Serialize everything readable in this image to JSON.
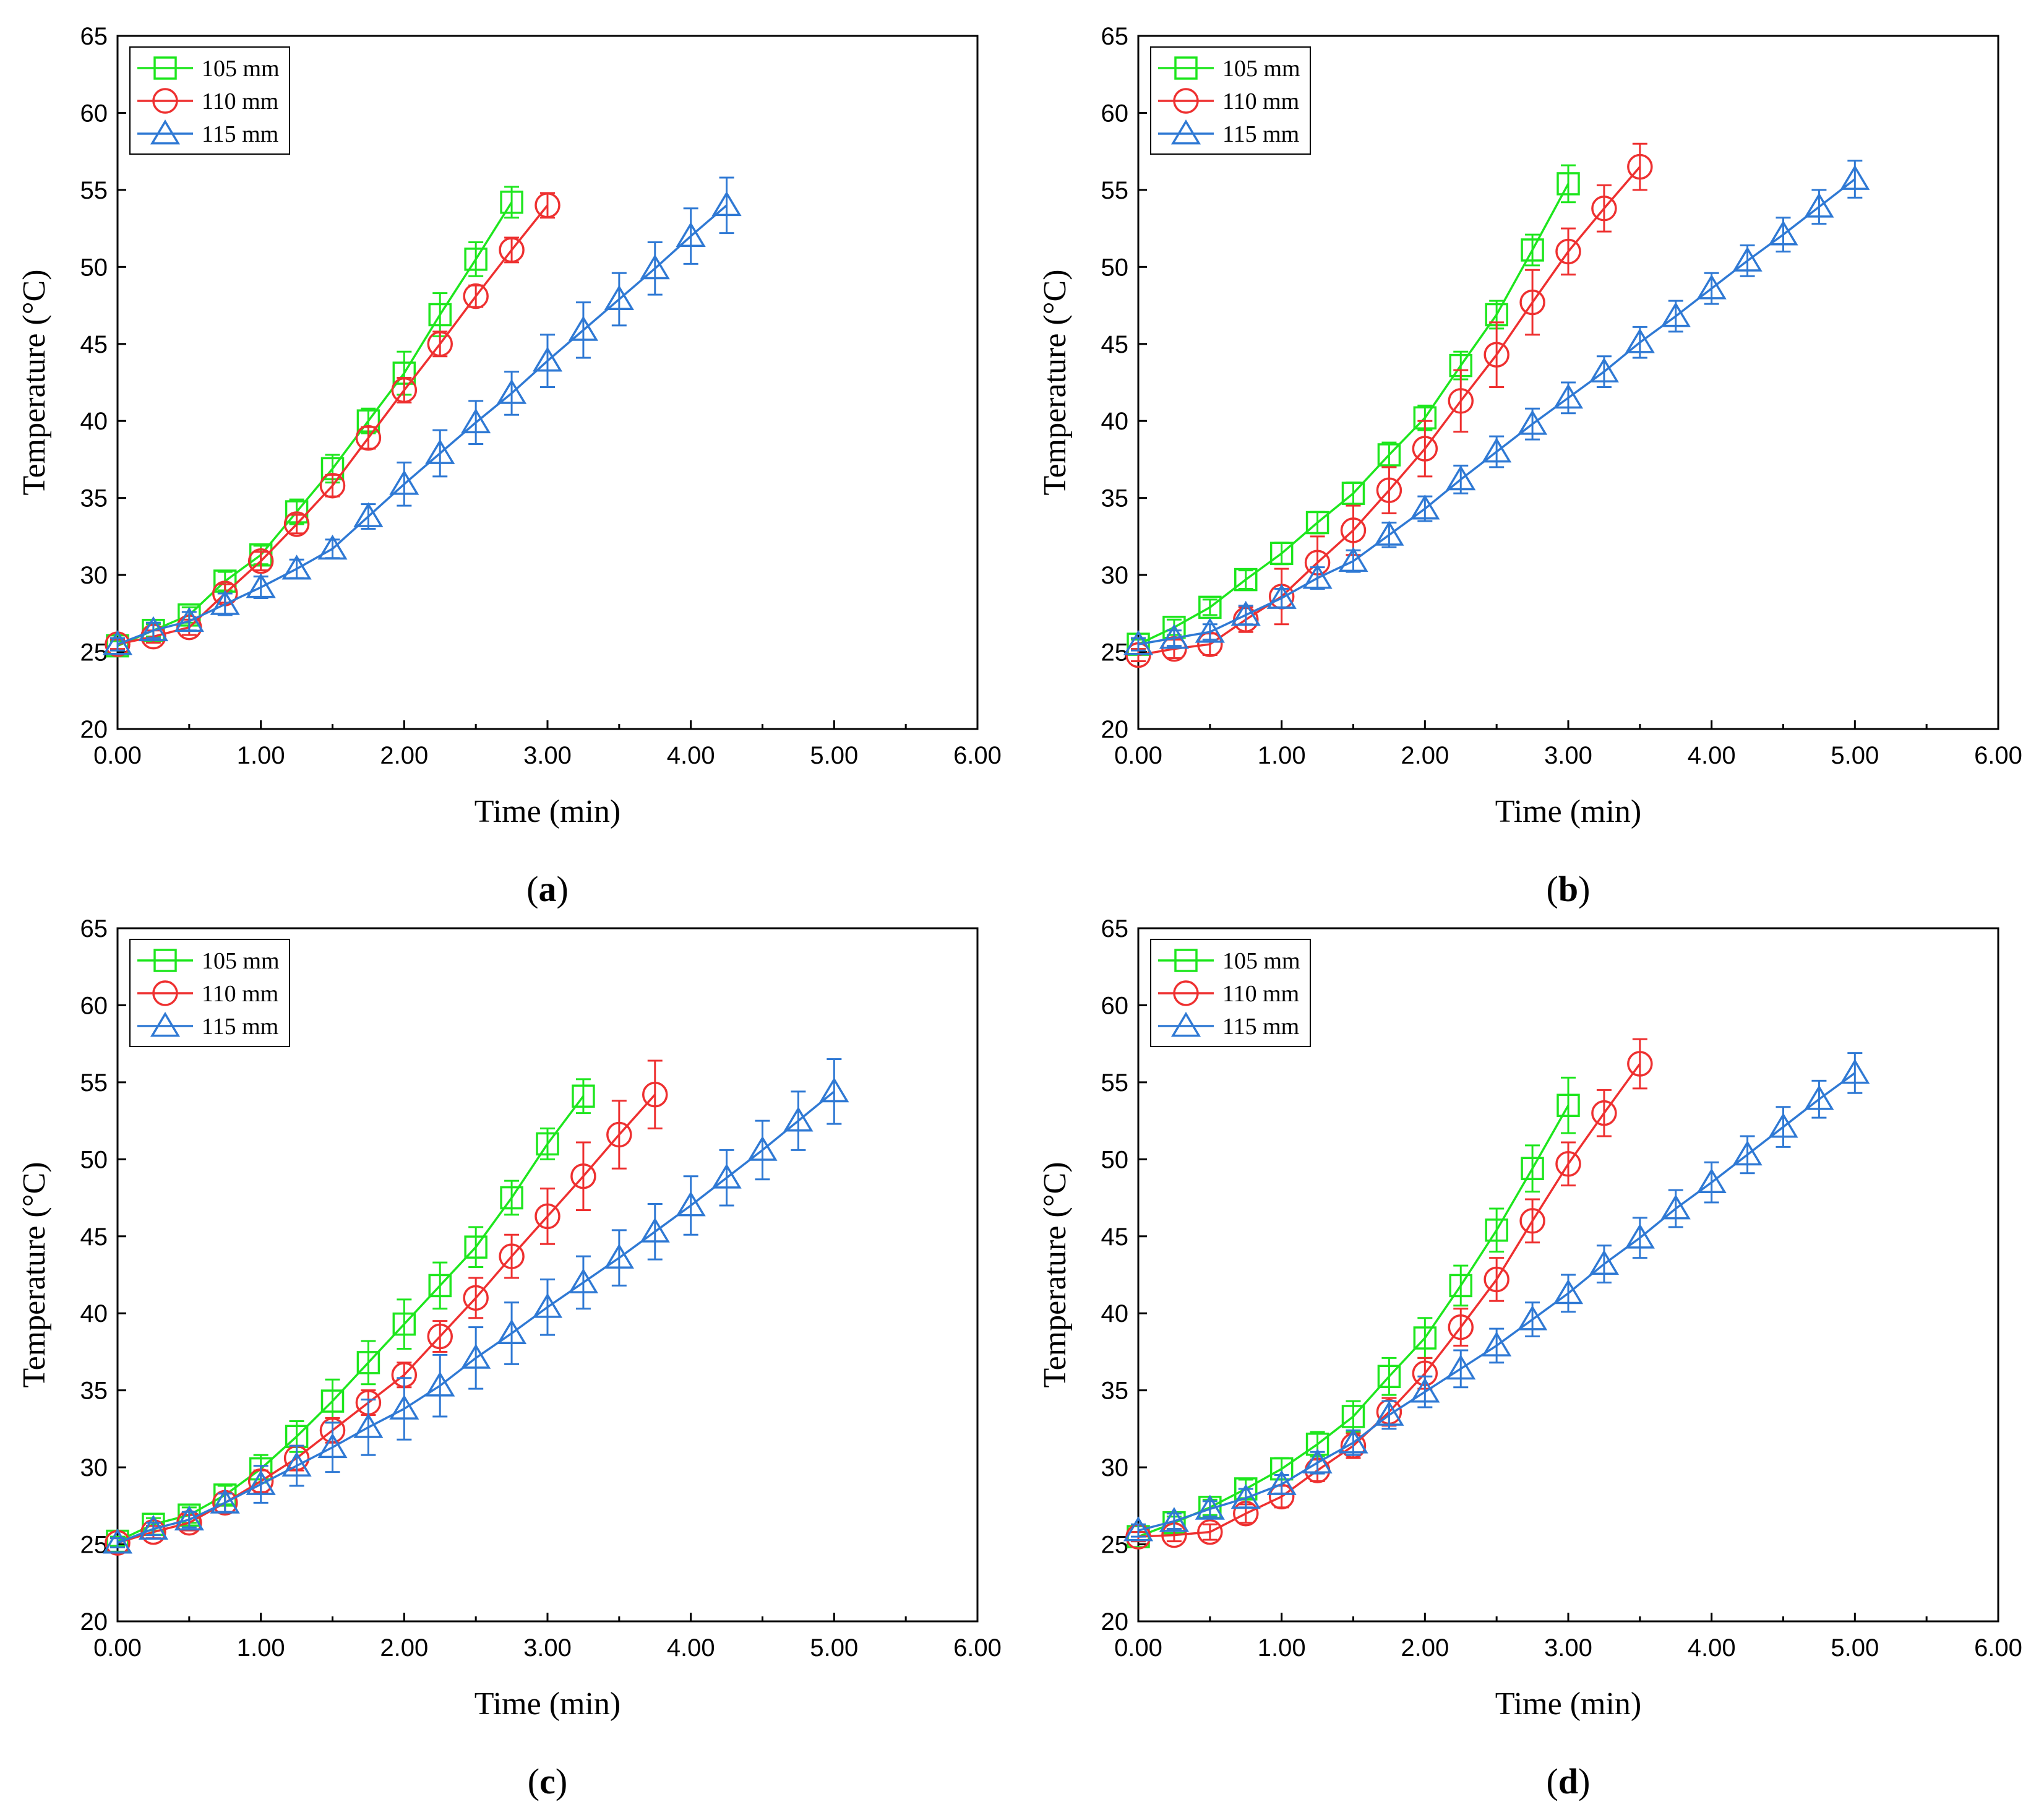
{
  "figure": {
    "colors": {
      "105 mm": "#1ee61e",
      "110 mm": "#ee3030",
      "115 mm": "#2f79d4"
    },
    "markers": {
      "105 mm": "square",
      "110 mm": "circle",
      "115 mm": "triangle"
    }
  },
  "chart_data": [
    {
      "type": "line",
      "panel": "a",
      "xlabel": "Time (min)",
      "ylabel": "Temperature (°C)",
      "xlim": [
        0,
        6
      ],
      "ylim": [
        20,
        65
      ],
      "xticks": [
        "0.00",
        "1.00",
        "2.00",
        "3.00",
        "4.00",
        "5.00",
        "6.00"
      ],
      "yticks": [
        "20",
        "25",
        "30",
        "35",
        "40",
        "45",
        "50",
        "55",
        "60",
        "65"
      ],
      "legend": [
        "105 mm",
        "110 mm",
        "115 mm"
      ],
      "series": [
        {
          "name": "105 mm",
          "x": [
            0,
            0.25,
            0.5,
            0.75,
            1.0,
            1.25,
            1.5,
            1.75,
            2.0,
            2.25,
            2.5,
            2.75
          ],
          "y": [
            25.4,
            26.4,
            27.4,
            29.6,
            31.3,
            34.1,
            36.9,
            40.0,
            43.1,
            46.9,
            50.5,
            54.2
          ],
          "err": [
            0.3,
            0.4,
            0.5,
            0.6,
            0.6,
            0.8,
            0.9,
            0.8,
            1.4,
            1.4,
            1.1,
            1.0
          ]
        },
        {
          "name": "110 mm",
          "x": [
            0,
            0.25,
            0.5,
            0.75,
            1.0,
            1.25,
            1.5,
            1.75,
            2.0,
            2.25,
            2.5,
            2.75,
            3.0
          ],
          "y": [
            25.5,
            26.0,
            26.6,
            28.8,
            30.9,
            33.3,
            35.8,
            38.9,
            42.0,
            45.0,
            48.1,
            51.1,
            54.0
          ],
          "err": [
            0.3,
            0.4,
            0.5,
            0.6,
            0.6,
            0.6,
            0.7,
            0.7,
            0.8,
            0.8,
            0.7,
            0.8,
            0.8
          ]
        },
        {
          "name": "115 mm",
          "x": [
            0,
            0.25,
            0.5,
            0.75,
            1.0,
            1.25,
            1.5,
            1.75,
            2.0,
            2.25,
            2.5,
            2.75,
            3.0,
            3.25,
            3.5,
            3.75,
            4.0,
            4.25
          ],
          "y": [
            25.5,
            26.4,
            27.0,
            28.1,
            29.2,
            30.4,
            31.7,
            33.8,
            35.9,
            37.9,
            39.9,
            41.8,
            43.9,
            45.9,
            47.9,
            49.9,
            52.0,
            54.0
          ],
          "err": [
            0.4,
            0.5,
            0.6,
            0.7,
            0.7,
            0.6,
            0.6,
            0.8,
            1.4,
            1.5,
            1.4,
            1.4,
            1.7,
            1.8,
            1.7,
            1.7,
            1.8,
            1.8
          ]
        }
      ]
    },
    {
      "type": "line",
      "panel": "b",
      "xlabel": "Time (min)",
      "ylabel": "Temperature (°C)",
      "xlim": [
        0,
        6
      ],
      "ylim": [
        20,
        65
      ],
      "xticks": [
        "0.00",
        "1.00",
        "2.00",
        "3.00",
        "4.00",
        "5.00",
        "6.00"
      ],
      "yticks": [
        "20",
        "25",
        "30",
        "35",
        "40",
        "45",
        "50",
        "55",
        "60",
        "65"
      ],
      "legend": [
        "105 mm",
        "110 mm",
        "115 mm"
      ],
      "series": [
        {
          "name": "105 mm",
          "x": [
            0,
            0.25,
            0.5,
            0.75,
            1.0,
            1.25,
            1.5,
            1.75,
            2.0,
            2.25,
            2.5,
            2.75,
            3.0
          ],
          "y": [
            25.5,
            26.6,
            27.9,
            29.7,
            31.4,
            33.4,
            35.3,
            37.8,
            40.2,
            43.6,
            46.9,
            51.1,
            55.4
          ],
          "err": [
            0.3,
            0.5,
            0.5,
            0.6,
            0.7,
            0.7,
            0.7,
            0.8,
            0.8,
            0.9,
            0.9,
            1.0,
            1.2
          ]
        },
        {
          "name": "110 mm",
          "x": [
            0,
            0.25,
            0.5,
            0.75,
            1.0,
            1.25,
            1.5,
            1.75,
            2.0,
            2.25,
            2.5,
            2.75,
            3.0,
            3.25,
            3.5
          ],
          "y": [
            24.8,
            25.2,
            25.5,
            27.1,
            28.6,
            30.8,
            32.9,
            35.5,
            38.2,
            41.3,
            44.3,
            47.7,
            51.0,
            53.8,
            56.5
          ],
          "err": [
            0.4,
            0.6,
            0.7,
            0.8,
            1.8,
            1.7,
            1.6,
            1.5,
            1.8,
            2.0,
            2.1,
            2.1,
            1.5,
            1.5,
            1.5
          ]
        },
        {
          "name": "115 mm",
          "x": [
            0,
            0.25,
            0.5,
            0.75,
            1.0,
            1.25,
            1.5,
            1.75,
            2.0,
            2.25,
            2.5,
            2.75,
            3.0,
            3.25,
            3.5,
            3.75,
            4.0,
            4.25,
            4.5,
            4.75,
            5.0
          ],
          "y": [
            25.5,
            25.9,
            26.3,
            27.4,
            28.5,
            29.8,
            30.9,
            32.6,
            34.3,
            36.2,
            38.0,
            39.8,
            41.5,
            43.2,
            45.1,
            46.8,
            48.6,
            50.4,
            52.1,
            53.9,
            55.7
          ],
          "err": [
            0.4,
            0.5,
            0.5,
            0.6,
            0.6,
            0.7,
            0.7,
            0.8,
            0.8,
            0.9,
            1.0,
            1.0,
            1.0,
            1.0,
            1.0,
            1.0,
            1.0,
            1.0,
            1.1,
            1.1,
            1.2
          ]
        }
      ]
    },
    {
      "type": "line",
      "panel": "c",
      "xlabel": "Time (min)",
      "ylabel": "Temperature (°C)",
      "xlim": [
        0,
        6
      ],
      "ylim": [
        20,
        65
      ],
      "xticks": [
        "0.00",
        "1.00",
        "2.00",
        "3.00",
        "4.00",
        "5.00",
        "6.00"
      ],
      "yticks": [
        "20",
        "25",
        "30",
        "35",
        "40",
        "45",
        "50",
        "55",
        "60",
        "65"
      ],
      "legend": [
        "105 mm",
        "110 mm",
        "115 mm"
      ],
      "series": [
        {
          "name": "105 mm",
          "x": [
            0,
            0.25,
            0.5,
            0.75,
            1.0,
            1.25,
            1.5,
            1.75,
            2.0,
            2.25,
            2.5,
            2.75,
            3.0,
            3.25
          ],
          "y": [
            25.2,
            26.3,
            26.9,
            28.2,
            29.9,
            32.0,
            34.3,
            36.8,
            39.3,
            41.8,
            44.3,
            47.5,
            51.0,
            54.1
          ],
          "err": [
            0.3,
            0.4,
            0.5,
            0.6,
            0.9,
            1.0,
            1.4,
            1.4,
            1.6,
            1.5,
            1.3,
            1.1,
            1.0,
            1.1
          ]
        },
        {
          "name": "110 mm",
          "x": [
            0,
            0.25,
            0.5,
            0.75,
            1.0,
            1.25,
            1.5,
            1.75,
            2.0,
            2.25,
            2.5,
            2.75,
            3.0,
            3.25,
            3.5,
            3.75
          ],
          "y": [
            25.1,
            25.8,
            26.4,
            27.7,
            29.1,
            30.6,
            32.4,
            34.2,
            36.0,
            38.5,
            41.0,
            43.7,
            46.3,
            48.9,
            51.6,
            54.2
          ],
          "err": [
            0.3,
            0.4,
            0.5,
            0.6,
            0.7,
            0.8,
            0.8,
            0.8,
            0.8,
            1.0,
            1.3,
            1.4,
            1.8,
            2.2,
            2.2,
            2.2
          ]
        },
        {
          "name": "115 mm",
          "x": [
            0,
            0.25,
            0.5,
            0.75,
            1.0,
            1.25,
            1.5,
            1.75,
            2.0,
            2.25,
            2.5,
            2.75,
            3.0,
            3.25,
            3.5,
            3.75,
            4.0,
            4.25,
            4.5,
            4.75,
            5.0
          ],
          "y": [
            25.1,
            26.0,
            26.6,
            27.7,
            28.9,
            30.1,
            31.3,
            32.6,
            33.8,
            35.3,
            37.1,
            38.7,
            40.4,
            42.0,
            43.6,
            45.3,
            47.0,
            48.8,
            50.6,
            52.5,
            54.4
          ],
          "err": [
            0.3,
            0.4,
            0.5,
            0.6,
            1.2,
            1.3,
            1.6,
            1.8,
            2.0,
            2.0,
            2.0,
            2.0,
            1.8,
            1.7,
            1.8,
            1.8,
            1.9,
            1.8,
            1.9,
            1.9,
            2.1
          ]
        }
      ]
    },
    {
      "type": "line",
      "panel": "d",
      "xlabel": "Time (min)",
      "ylabel": "Temperature (°C)",
      "xlim": [
        0,
        6
      ],
      "ylim": [
        20,
        65
      ],
      "xticks": [
        "0.00",
        "1.00",
        "2.00",
        "3.00",
        "4.00",
        "5.00",
        "6.00"
      ],
      "yticks": [
        "20",
        "25",
        "30",
        "35",
        "40",
        "45",
        "50",
        "55",
        "60",
        "65"
      ],
      "legend": [
        "105 mm",
        "110 mm",
        "115 mm"
      ],
      "series": [
        {
          "name": "105 mm",
          "x": [
            0,
            0.25,
            0.5,
            0.75,
            1.0,
            1.25,
            1.5,
            1.75,
            2.0,
            2.25,
            2.5,
            2.75,
            3.0
          ],
          "y": [
            25.5,
            26.4,
            27.4,
            28.6,
            29.9,
            31.5,
            33.3,
            35.9,
            38.4,
            41.8,
            45.4,
            49.4,
            53.5
          ],
          "err": [
            0.3,
            0.4,
            0.5,
            0.6,
            0.7,
            0.8,
            1.0,
            1.2,
            1.3,
            1.3,
            1.4,
            1.5,
            1.8
          ]
        },
        {
          "name": "110 mm",
          "x": [
            0,
            0.25,
            0.5,
            0.75,
            1.0,
            1.25,
            1.5,
            1.75,
            2.0,
            2.25,
            2.5,
            2.75,
            3.0,
            3.25,
            3.5
          ],
          "y": [
            25.5,
            25.6,
            25.8,
            27.0,
            28.1,
            29.8,
            31.4,
            33.6,
            36.1,
            39.1,
            42.2,
            46.0,
            49.7,
            53.0,
            56.2
          ],
          "err": [
            0.3,
            0.4,
            0.5,
            0.6,
            0.7,
            0.7,
            0.8,
            0.9,
            1.0,
            1.2,
            1.4,
            1.4,
            1.4,
            1.5,
            1.6
          ]
        },
        {
          "name": "115 mm",
          "x": [
            0,
            0.25,
            0.5,
            0.75,
            1.0,
            1.25,
            1.5,
            1.75,
            2.0,
            2.25,
            2.5,
            2.75,
            3.0,
            3.25,
            3.5,
            3.75,
            4.0,
            4.25,
            4.5,
            4.75,
            5.0
          ],
          "y": [
            25.9,
            26.5,
            27.3,
            28.0,
            28.9,
            30.3,
            31.6,
            33.4,
            34.9,
            36.4,
            37.9,
            39.6,
            41.3,
            43.2,
            44.9,
            46.8,
            48.5,
            50.3,
            52.1,
            53.9,
            55.6
          ],
          "err": [
            0.4,
            0.5,
            0.5,
            0.6,
            0.6,
            0.7,
            0.8,
            0.9,
            1.0,
            1.2,
            1.1,
            1.1,
            1.2,
            1.2,
            1.3,
            1.2,
            1.3,
            1.2,
            1.3,
            1.2,
            1.3
          ]
        }
      ]
    }
  ]
}
